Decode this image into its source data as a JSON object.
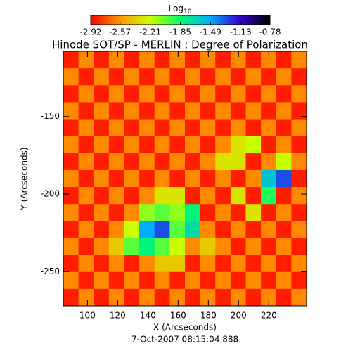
{
  "chart_data": {
    "type": "heatmap",
    "title": "Hinode SOT/SP - MERLIN : Degree of Polarization",
    "colorbar_title": "Log",
    "colorbar_title_sub": "10",
    "x_label": "X (Arcseconds)",
    "y_label": "Y (Arcseconds)",
    "date": "7-Oct-2007 08:15:04.888",
    "xlim": [
      84,
      245
    ],
    "ylim": [
      -272,
      -108
    ],
    "xticks": [
      100,
      120,
      140,
      160,
      180,
      200,
      220
    ],
    "yticks": [
      -150,
      -200,
      -250
    ],
    "zlim": [
      -2.92,
      -0.78
    ],
    "cticks": [
      -2.92,
      -2.57,
      -2.21,
      -1.85,
      -1.49,
      -1.13,
      -0.78
    ],
    "colorscale": [
      "#ff0000",
      "#ff9900",
      "#ccff00",
      "#00ff66",
      "#00aaff",
      "#3300cc",
      "#000000"
    ],
    "z": [
      [
        -2.85,
        -2.6,
        -2.85,
        -2.6,
        -2.85,
        -2.6,
        -2.85,
        -2.6,
        -2.85,
        -2.6,
        -2.85,
        -2.6,
        -2.85,
        -2.6,
        -2.85,
        -2.6
      ],
      [
        -2.6,
        -2.85,
        -2.6,
        -2.85,
        -2.6,
        -2.85,
        -2.6,
        -2.85,
        -2.6,
        -2.85,
        -2.6,
        -2.85,
        -2.6,
        -2.85,
        -2.6,
        -2.85
      ],
      [
        -2.85,
        -2.6,
        -2.85,
        -2.6,
        -2.85,
        -2.6,
        -2.85,
        -2.6,
        -2.85,
        -2.6,
        -2.85,
        -2.6,
        -2.85,
        -2.6,
        -2.85,
        -2.6
      ],
      [
        -2.6,
        -2.85,
        -2.6,
        -2.85,
        -2.6,
        -2.85,
        -2.6,
        -2.85,
        -2.6,
        -2.85,
        -2.6,
        -2.85,
        -2.6,
        -2.85,
        -2.6,
        -2.85
      ],
      [
        -2.85,
        -2.6,
        -2.85,
        -2.6,
        -2.85,
        -2.6,
        -2.85,
        -2.6,
        -2.85,
        -2.6,
        -2.85,
        -2.6,
        -2.85,
        -2.6,
        -2.85,
        -2.6
      ],
      [
        -2.6,
        -2.85,
        -2.6,
        -2.85,
        -2.6,
        -2.85,
        -2.6,
        -2.85,
        -2.6,
        -2.85,
        -2.6,
        -2.3,
        -2.2,
        -2.85,
        -2.6,
        -2.85
      ],
      [
        -2.85,
        -2.6,
        -2.85,
        -2.6,
        -2.85,
        -2.6,
        -2.85,
        -2.6,
        -2.85,
        -2.6,
        -2.3,
        -2.3,
        -2.85,
        -2.6,
        -2.2,
        -2.6
      ],
      [
        -2.6,
        -2.85,
        -2.6,
        -2.85,
        -2.6,
        -2.85,
        -2.6,
        -2.85,
        -2.6,
        -2.85,
        -2.6,
        -2.85,
        -2.6,
        -1.6,
        -1.3,
        -2.85
      ],
      [
        -2.85,
        -2.6,
        -2.85,
        -2.6,
        -2.85,
        -2.6,
        -2.3,
        -2.3,
        -2.85,
        -2.6,
        -2.85,
        -2.3,
        -2.85,
        -1.9,
        -2.85,
        -2.6
      ],
      [
        -2.6,
        -2.85,
        -2.6,
        -2.85,
        -2.6,
        -2.1,
        -2.0,
        -2.1,
        -1.8,
        -2.85,
        -2.6,
        -2.85,
        -2.3,
        -2.85,
        -2.6,
        -2.85
      ],
      [
        -2.85,
        -2.6,
        -2.85,
        -2.6,
        -2.2,
        -1.5,
        -1.3,
        -2.0,
        -1.7,
        -2.6,
        -2.85,
        -2.6,
        -2.85,
        -2.6,
        -2.85,
        -2.6
      ],
      [
        -2.6,
        -2.85,
        -2.6,
        -2.4,
        -2.0,
        -1.8,
        -2.0,
        -2.2,
        -2.6,
        -2.4,
        -2.6,
        -2.85,
        -2.6,
        -2.85,
        -2.6,
        -2.85
      ],
      [
        -2.85,
        -2.6,
        -2.85,
        -2.6,
        -2.85,
        -2.6,
        -2.4,
        -2.4,
        -2.85,
        -2.6,
        -2.85,
        -2.6,
        -2.85,
        -2.6,
        -2.85,
        -2.6
      ],
      [
        -2.6,
        -2.85,
        -2.6,
        -2.85,
        -2.6,
        -2.85,
        -2.6,
        -2.85,
        -2.6,
        -2.85,
        -2.6,
        -2.85,
        -2.6,
        -2.85,
        -2.6,
        -2.85
      ],
      [
        -2.85,
        -2.6,
        -2.85,
        -2.6,
        -2.85,
        -2.6,
        -2.85,
        -2.6,
        -2.85,
        -2.6,
        -2.85,
        -2.6,
        -2.85,
        -2.6,
        -2.85,
        -2.6
      ]
    ]
  }
}
